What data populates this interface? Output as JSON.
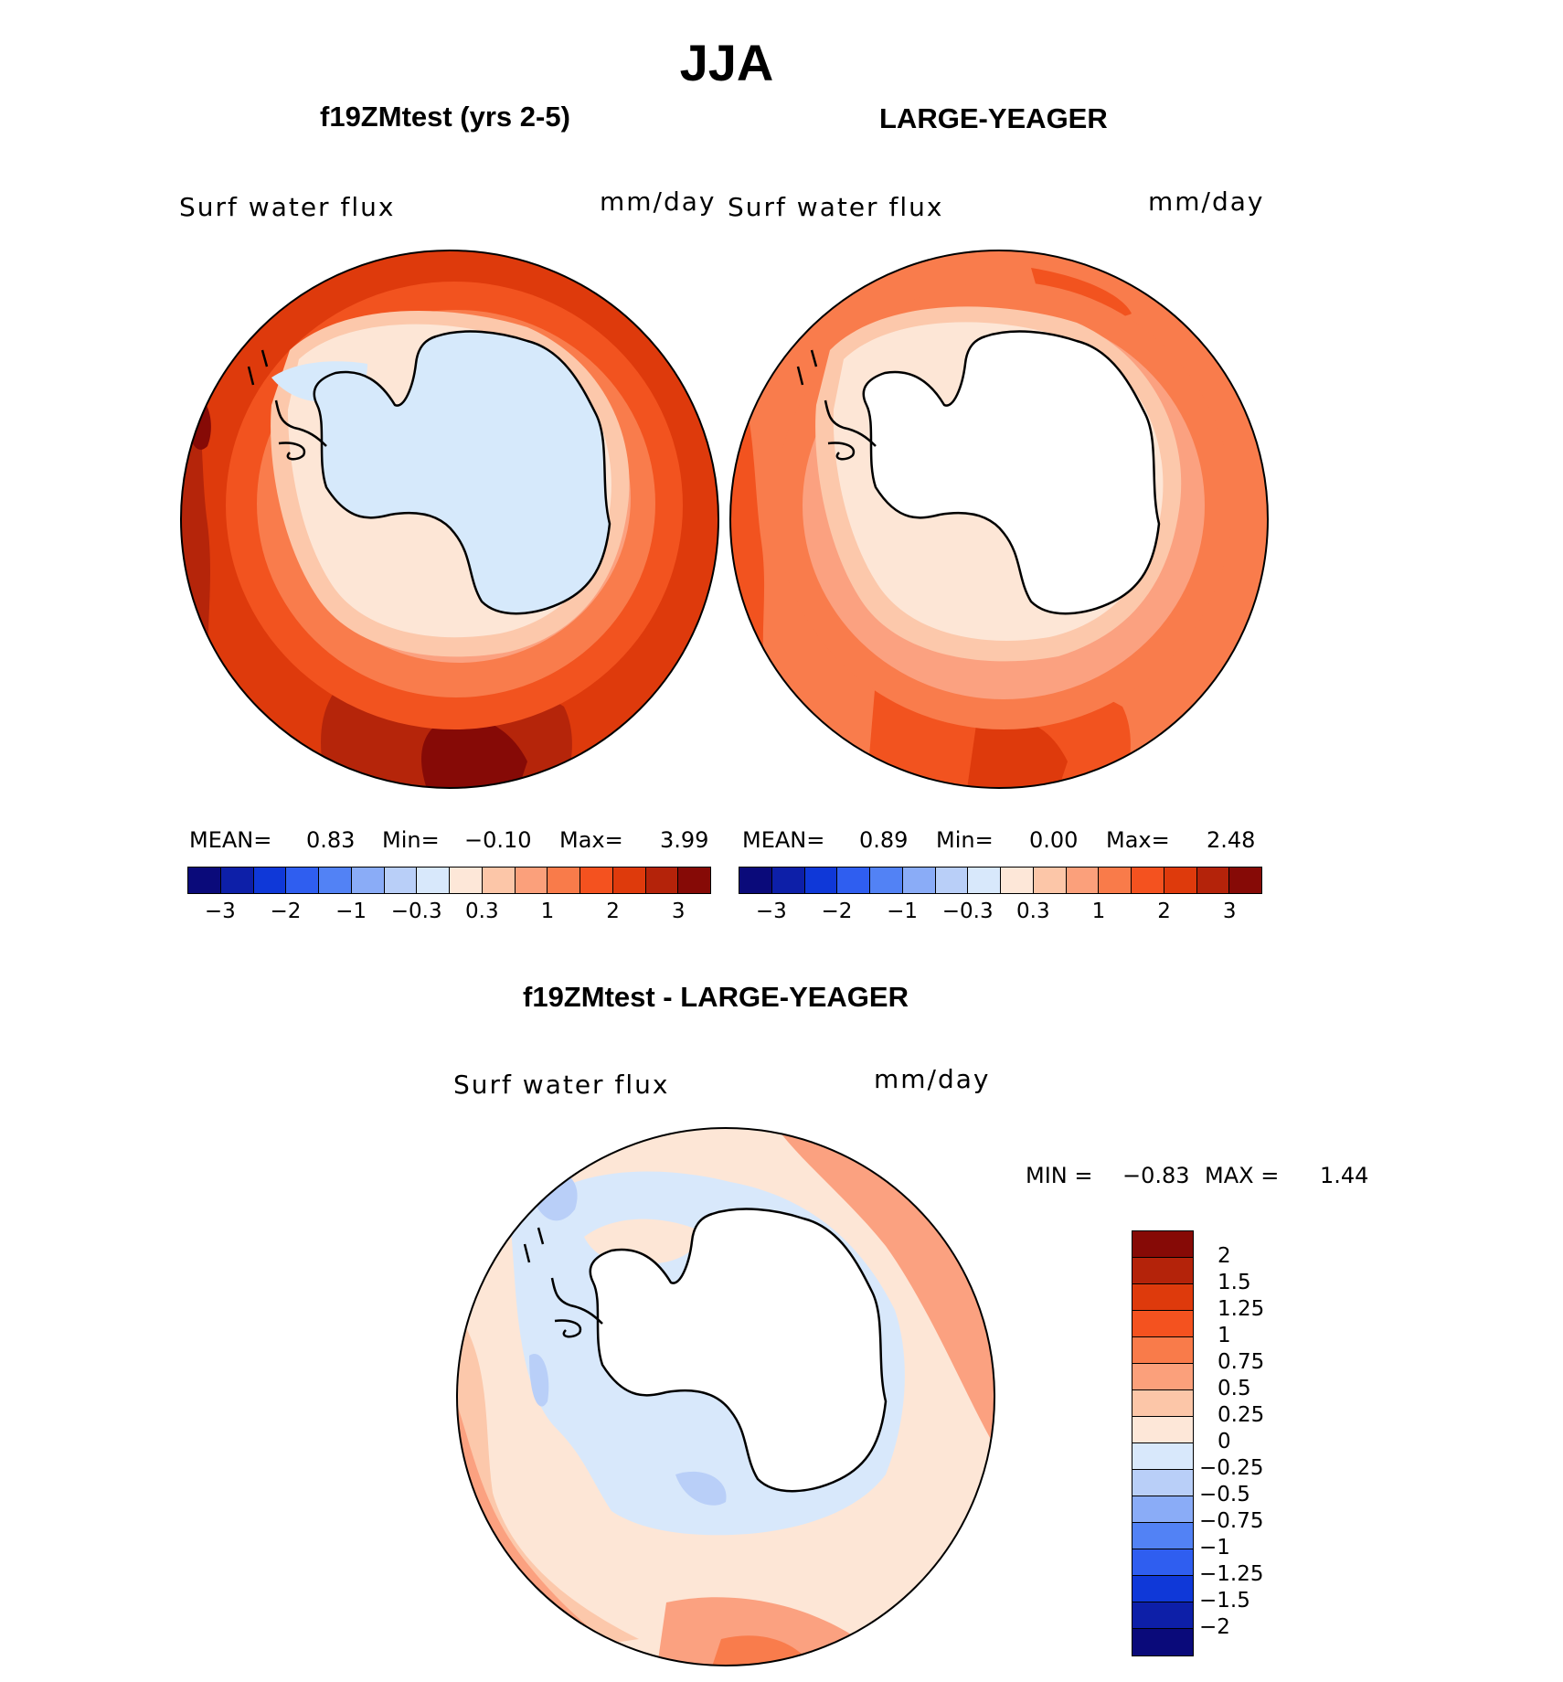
{
  "title": "JJA",
  "panels": [
    {
      "title": "f19ZMtest (yrs 2-5)",
      "variable": "Surf water flux",
      "units": "mm/day",
      "stats": {
        "mean_label": "MEAN=",
        "mean": "0.83",
        "min_label": "Min=",
        "min": "−0.10",
        "max_label": "Max=",
        "max": "3.99"
      },
      "colorbar": {
        "colors": [
          "#0a0a7a",
          "#0d1fa8",
          "#0f38d8",
          "#2f5ef0",
          "#5282f5",
          "#8aacf7",
          "#b9cff8",
          "#d8e8fb",
          "#fde7d8",
          "#fcc6a8",
          "#fba07b",
          "#f97b4a",
          "#f4521f",
          "#de3a0c",
          "#b4230a",
          "#860a06"
        ],
        "tick_labels": [
          "−3",
          "−2",
          "−1",
          "−0.3",
          "0.3",
          "1",
          "2",
          "3"
        ]
      },
      "map_colors": {
        "land": "#d6e9fb",
        "ring1": "#fde6d6",
        "ring2": "#fcc8ab",
        "ring3": "#fba180",
        "ring4": "#f97c4c",
        "ring5": "#f2531f",
        "ring6": "#de3a0c",
        "hot": "#b5250a",
        "hottest": "#860a06"
      }
    },
    {
      "title": "LARGE-YEAGER",
      "variable": "Surf water flux",
      "units": "mm/day",
      "stats": {
        "mean_label": "MEAN=",
        "mean": "0.89",
        "min_label": "Min=",
        "min": "0.00",
        "max_label": "Max=",
        "max": "2.48"
      },
      "colorbar": {
        "colors": [
          "#0a0a7a",
          "#0d1fa8",
          "#0f38d8",
          "#2f5ef0",
          "#5282f5",
          "#8aacf7",
          "#b9cff8",
          "#d8e8fb",
          "#fde7d8",
          "#fcc6a8",
          "#fba07b",
          "#f97b4a",
          "#f4521f",
          "#de3a0c",
          "#b4230a",
          "#860a06"
        ],
        "tick_labels": [
          "−3",
          "−2",
          "−1",
          "−0.3",
          "0.3",
          "1",
          "2",
          "3"
        ]
      },
      "map_colors": {
        "land": "#ffffff",
        "ring1": "#fde6d6",
        "ring2": "#fcc8ab",
        "ring3": "#fba180",
        "ring4": "#f97c4c",
        "ring5": "#f2531f",
        "ring6": "#de3a0c",
        "hot": "#b5250a",
        "hottest": "#860a06"
      }
    }
  ],
  "difference": {
    "title": "f19ZMtest - LARGE-YEAGER",
    "variable": "Surf water flux",
    "units": "mm/day",
    "stats": {
      "min_label": "MIN =",
      "min": "−0.83",
      "max_label": "MAX =",
      "max": "1.44"
    },
    "colorbar": {
      "colors": [
        "#860a06",
        "#b4230a",
        "#de3a0c",
        "#f4521f",
        "#f97b4a",
        "#fba07b",
        "#fcc6a8",
        "#fde7d8",
        "#d8e8fb",
        "#b9cff8",
        "#8aacf7",
        "#5282f5",
        "#2f5ef0",
        "#0f38d8",
        "#0d1fa8",
        "#0a0a7a"
      ],
      "labels": [
        "2",
        "1.5",
        "1.25",
        "1",
        "0.75",
        "0.5",
        "0.25",
        "0",
        "−0.25",
        "−0.5",
        "−0.75",
        "−1",
        "−1.25",
        "−1.5",
        "−2"
      ]
    },
    "map_colors": {
      "land": "#ffffff",
      "ring_light_blue": "#d8e8fb",
      "ring_blue": "#b9cff8",
      "ring_blue2": "#8aacf7",
      "ring1": "#fde6d6",
      "ring2": "#fcc8ab",
      "ring3": "#fba180",
      "ring4": "#f97c4c"
    }
  }
}
